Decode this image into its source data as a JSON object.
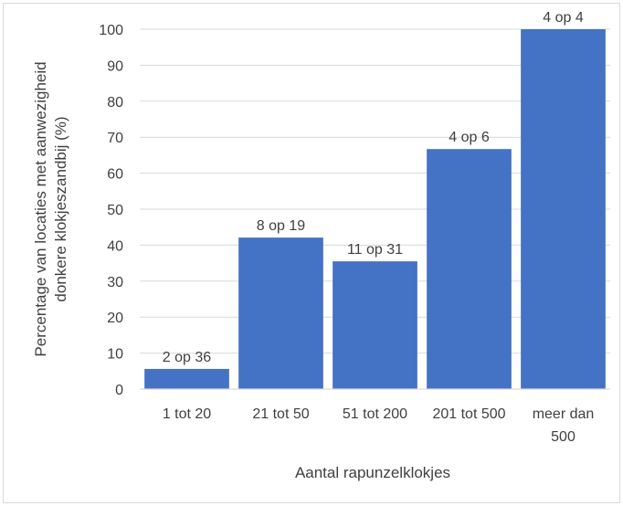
{
  "chart_data": {
    "type": "bar",
    "title": "",
    "xlabel": "Aantal rapunzelklokjes",
    "ylabel_lines": [
      "Percentage van locaties met aanwezigheid",
      "donkere klokjeszandbij (%)"
    ],
    "categories": [
      [
        "1 tot 20"
      ],
      [
        "21 tot 50"
      ],
      [
        "51 tot 200"
      ],
      [
        "201 tot 500"
      ],
      [
        "meer dan",
        "500"
      ]
    ],
    "values": [
      5.6,
      42.1,
      35.5,
      66.7,
      100
    ],
    "data_labels": [
      "2 op 36",
      "8 op 19",
      "11 op 31",
      "4 op 6",
      "4 op 4"
    ],
    "ylim": [
      0,
      100
    ],
    "yticks": [
      "0",
      "10",
      "20",
      "30",
      "40",
      "50",
      "60",
      "70",
      "80",
      "90",
      "100"
    ],
    "grid": true,
    "legend": "none",
    "bar_color": "#4472c4",
    "grid_color": "#d9d9d9"
  }
}
